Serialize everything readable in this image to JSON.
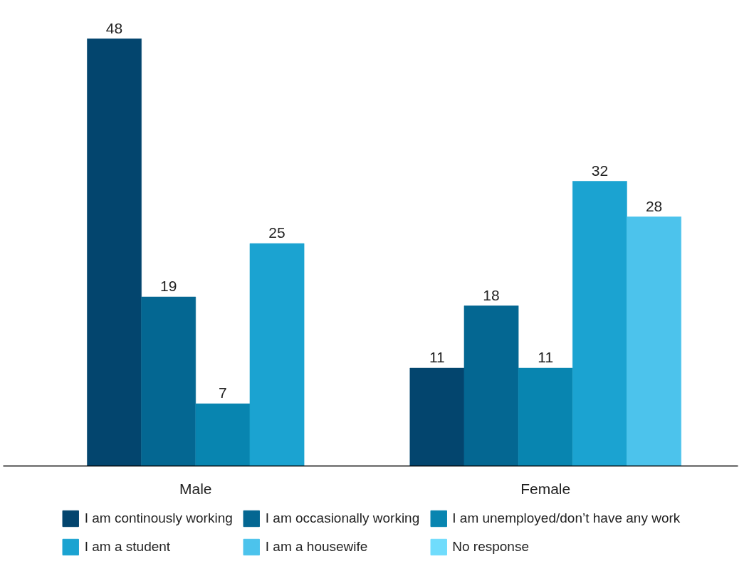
{
  "chart_data": {
    "type": "bar",
    "categories": [
      "Male",
      "Female"
    ],
    "series": [
      {
        "name": "I am continously working",
        "color": "#03456e",
        "values": [
          48,
          11
        ]
      },
      {
        "name": "I am occasionally working",
        "color": "#046792",
        "values": [
          19,
          18
        ]
      },
      {
        "name": "I am unemployed/don’t have any work",
        "color": "#0885b0",
        "values": [
          7,
          11
        ]
      },
      {
        "name": "I am a student",
        "color": "#1ba3d1",
        "values": [
          25,
          32
        ]
      },
      {
        "name": "I am a housewife",
        "color": "#4cc3ec",
        "values": [
          null,
          28
        ]
      },
      {
        "name": "No response",
        "color": "#70dcfc",
        "values": [
          null,
          null
        ]
      }
    ],
    "data_labels": true,
    "legend": "bottom"
  }
}
